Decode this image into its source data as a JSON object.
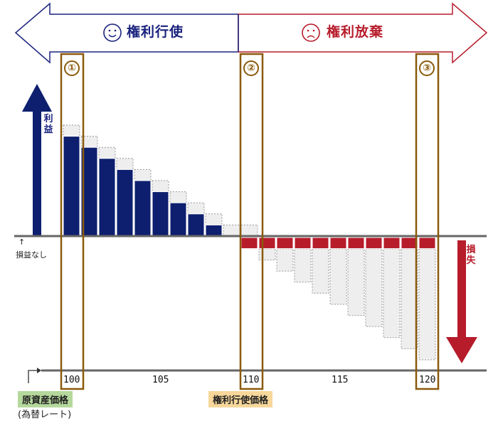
{
  "banner": {
    "exercise_label": "権利行使",
    "abandon_label": "権利放棄",
    "exercise_color": "#1a237e",
    "abandon_color": "#b71c2b",
    "exercise_face": "smiley-face-icon",
    "abandon_face": "frowning-face-icon"
  },
  "markers": [
    {
      "label": "①"
    },
    {
      "label": "②"
    },
    {
      "label": "③"
    }
  ],
  "axis": {
    "profit_label": "利益",
    "loss_label": "損失",
    "breakeven_label": "損益なし",
    "breakeven_arrow": "↑",
    "ticks": [
      "100",
      "105",
      "110",
      "115",
      "120"
    ]
  },
  "badges": {
    "underlying_label": "原資産価格",
    "underlying_sub": "(為替レート)",
    "underlying_color": "#b5d99c",
    "strike_label": "権利行使価格",
    "strike_color": "#f7d79a"
  },
  "colors": {
    "profit_bar": "#0d1f6e",
    "loss_bar": "#b71c2b",
    "premium_fill": "#eeeeee",
    "marker": "#8a5a0b"
  },
  "chart_data": {
    "type": "bar",
    "x": [
      100,
      101,
      102,
      103,
      104,
      105,
      106,
      107,
      108,
      109,
      110,
      111,
      112,
      113,
      114,
      115,
      116,
      117,
      118,
      119,
      120
    ],
    "strike": 110,
    "premium": 1,
    "payoff_without_premium": [
      10,
      9,
      8,
      7,
      6,
      5,
      4,
      3,
      2,
      1,
      0,
      0,
      0,
      0,
      0,
      0,
      0,
      0,
      0,
      0,
      0
    ],
    "net_profit_loss": [
      9,
      8,
      7,
      6,
      5,
      4,
      3,
      2,
      1,
      0,
      -1,
      -1,
      -1,
      -1,
      -1,
      -1,
      -1,
      -1,
      -1,
      -1,
      -1
    ],
    "dashed_series_values": [
      10,
      9,
      8,
      7,
      6,
      5,
      4,
      3,
      2,
      1,
      0,
      -1,
      -2,
      -3,
      -4,
      -5,
      -6,
      -7,
      -8,
      -9,
      -10
    ]
  }
}
